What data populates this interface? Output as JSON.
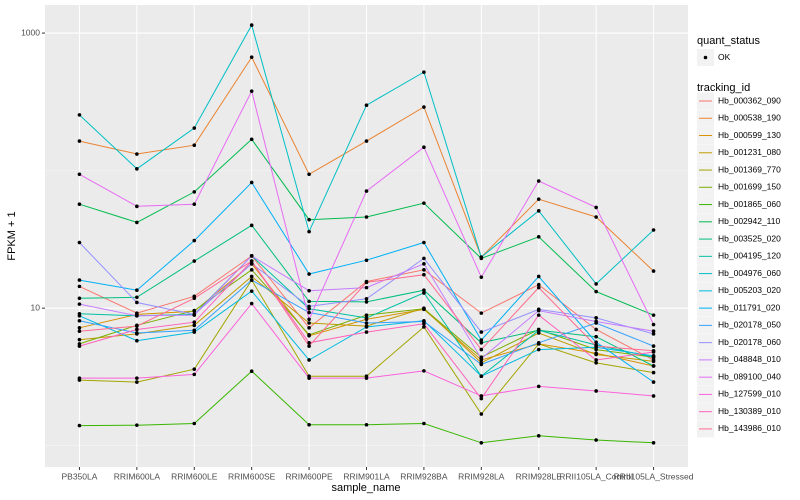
{
  "chart_data": {
    "type": "line",
    "log_y": true,
    "grid": true,
    "x_label": "sample_name",
    "y_label": "FPKM + 1",
    "categories": [
      "PB350LA",
      "RRIM600LA",
      "RRIM600LE",
      "RRIM600SE",
      "RRIM600PE",
      "RRIM901LA",
      "RRIM928BA",
      "RRIM928LA",
      "RRIM928LE",
      "RRII105LA_Control",
      "RRII105LA_Stressed"
    ],
    "ylim": [
      0.7,
      1600
    ],
    "yticks": [
      10,
      1000
    ],
    "point_legend_title": "quant_status",
    "point_legend_entry": "OK",
    "point_color": "#000000",
    "legend_title": "tracking_id",
    "series": [
      {
        "name": "Hb_000362_090",
        "color": "#F8766D",
        "values": [
          14.4,
          9.2,
          12.2,
          24,
          7.2,
          15.6,
          19,
          9.2,
          14.8,
          7.0,
          4.2
        ]
      },
      {
        "name": "Hb_000538_190",
        "color": "#EA8331",
        "values": [
          164,
          132,
          153,
          668,
          94,
          164,
          290,
          23.5,
          62,
          46,
          18.6
        ]
      },
      {
        "name": "Hb_000599_130",
        "color": "#D89000",
        "values": [
          7.2,
          9.0,
          9.5,
          21,
          6.3,
          8.3,
          9.8,
          4.2,
          5.5,
          4.7,
          3.8
        ]
      },
      {
        "name": "Hb_001231_080",
        "color": "#C09B00",
        "values": [
          5.9,
          6.5,
          7.5,
          17,
          7.8,
          7.4,
          10,
          4.0,
          6.6,
          4.6,
          4.1
        ]
      },
      {
        "name": "Hb_001369_770",
        "color": "#A3A500",
        "values": [
          3.0,
          2.9,
          3.6,
          16,
          3.2,
          3.2,
          7.3,
          1.7,
          5.5,
          4.0,
          3.4
        ]
      },
      {
        "name": "Hb_001699_150",
        "color": "#7CAE00",
        "values": [
          5.5,
          7.5,
          9.6,
          19,
          6.4,
          8.9,
          9.9,
          4.4,
          7.0,
          5.0,
          4.4
        ]
      },
      {
        "name": "Hb_001865_060",
        "color": "#39B600",
        "values": [
          1.4,
          1.41,
          1.45,
          3.48,
          1.42,
          1.42,
          1.45,
          1.05,
          1.18,
          1.1,
          1.05
        ]
      },
      {
        "name": "Hb_002942_110",
        "color": "#00BB4E",
        "values": [
          57,
          42,
          70,
          169,
          44,
          46,
          58,
          23,
          33,
          13.2,
          8.9
        ]
      },
      {
        "name": "Hb_003525_020",
        "color": "#00BF7D",
        "values": [
          11.8,
          12.0,
          22,
          40,
          11.2,
          11.1,
          13.5,
          5.6,
          6.9,
          6.2,
          3.8
        ]
      },
      {
        "name": "Hb_004195_120",
        "color": "#00C1A3",
        "values": [
          9.1,
          8.8,
          9.0,
          24,
          9.9,
          8.5,
          12.9,
          3.2,
          6.9,
          5.4,
          4.4
        ]
      },
      {
        "name": "Hb_004976_060",
        "color": "#00BFC4",
        "values": [
          254,
          103,
          204,
          1143,
          36,
          299,
          520,
          23.5,
          51,
          15,
          37
        ]
      },
      {
        "name": "Hb_005203_020",
        "color": "#00BAE0",
        "values": [
          8.8,
          5.8,
          6.7,
          13.3,
          4.2,
          7.3,
          8.1,
          3.2,
          5.0,
          5.2,
          4.5
        ]
      },
      {
        "name": "Hb_011791_020",
        "color": "#00B0F6",
        "values": [
          16,
          13.5,
          31,
          82,
          17.7,
          22.3,
          30,
          5.86,
          17,
          5.66,
          2.9
        ]
      },
      {
        "name": "Hb_020178_050",
        "color": "#35A2FF",
        "values": [
          8.1,
          6.6,
          6.9,
          16,
          9.3,
          7.8,
          8.0,
          3.9,
          5.6,
          7.8,
          5.3
        ]
      },
      {
        "name": "Hb_020178_060",
        "color": "#9590FF",
        "values": [
          30,
          11,
          9.0,
          21,
          10.3,
          11.7,
          23,
          6.7,
          9.8,
          8.5,
          6.5
        ]
      },
      {
        "name": "Hb_048848_010",
        "color": "#C77CFF",
        "values": [
          10.7,
          8.8,
          8.9,
          24,
          13.4,
          14.1,
          21,
          4.3,
          9.6,
          8.0,
          6.8
        ]
      },
      {
        "name": "Hb_089100_040",
        "color": "#E76BF3",
        "values": [
          94,
          55,
          57,
          378,
          8.3,
          71,
          148,
          16.8,
          84,
          54,
          7.6
        ]
      },
      {
        "name": "Hb_127599_010",
        "color": "#FA62DB",
        "values": [
          3.1,
          3.1,
          3.3,
          10.8,
          3.1,
          3.1,
          3.5,
          2.3,
          2.7,
          2.5,
          2.3
        ]
      },
      {
        "name": "Hb_130389_010",
        "color": "#FF62BC",
        "values": [
          5.3,
          7.0,
          7.9,
          22,
          5.6,
          6.7,
          7.7,
          2.2,
          8.9,
          4.2,
          4.8
        ]
      },
      {
        "name": "Hb_143986_010",
        "color": "#FF6C91",
        "values": [
          6.8,
          7.4,
          11.8,
          22,
          5.3,
          15.4,
          17.5,
          5.0,
          14.1,
          5.3,
          4.9
        ]
      }
    ]
  }
}
